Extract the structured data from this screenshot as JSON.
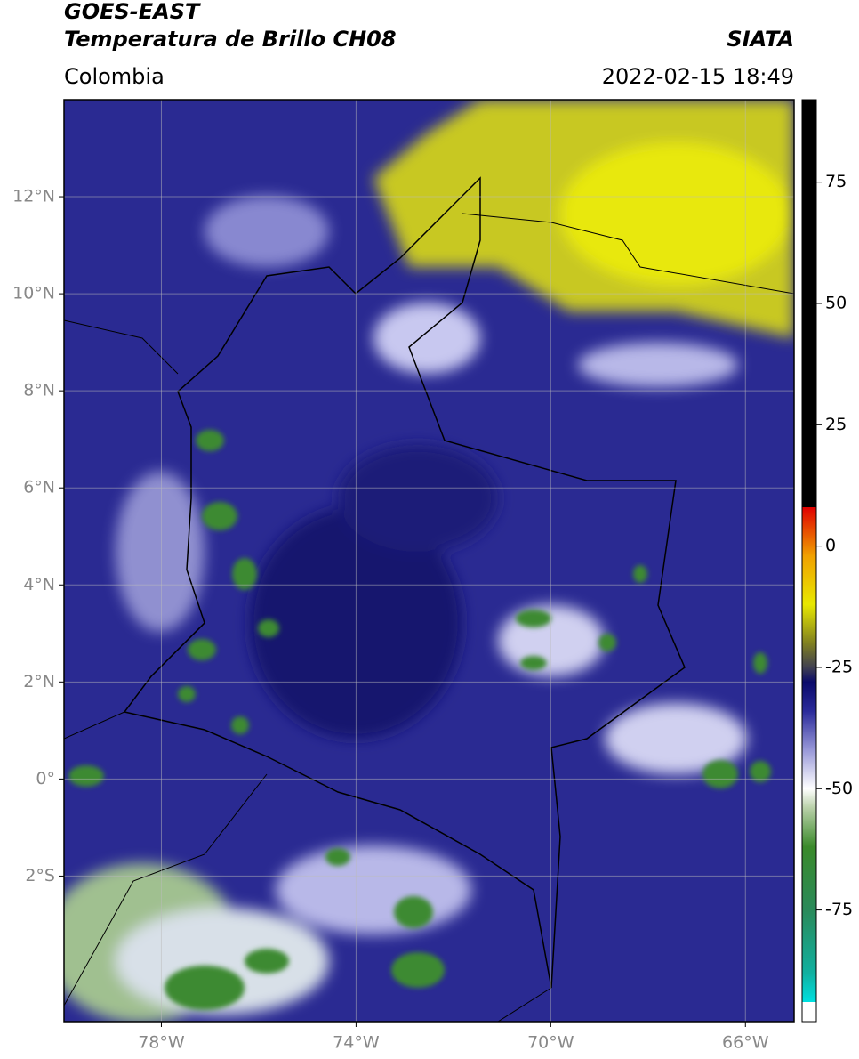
{
  "chart_data": {
    "type": "map",
    "title": "GOES-EAST",
    "subtitle": "Temperatura de Brillo CH08",
    "source": "SIATA",
    "region": "Colombia",
    "datetime": "2022-02-15 18:49",
    "xlim": [
      -80,
      -65
    ],
    "ylim": [
      -5,
      14
    ],
    "xticks": [
      {
        "value": -78,
        "label": "78°W"
      },
      {
        "value": -74,
        "label": "74°W"
      },
      {
        "value": -70,
        "label": "70°W"
      },
      {
        "value": -66,
        "label": "66°W"
      }
    ],
    "yticks": [
      {
        "value": 12,
        "label": "12°N"
      },
      {
        "value": 10,
        "label": "10°N"
      },
      {
        "value": 8,
        "label": "8°N"
      },
      {
        "value": 6,
        "label": "6°N"
      },
      {
        "value": 4,
        "label": "4°N"
      },
      {
        "value": 2,
        "label": "2°N"
      },
      {
        "value": 0,
        "label": "0°"
      },
      {
        "value": -2,
        "label": "2°S"
      }
    ],
    "grid": true,
    "colorbar": {
      "lim": [
        -98,
        92
      ],
      "ticks": [
        75,
        50,
        25,
        0,
        -25,
        -50,
        -75
      ],
      "stops": [
        {
          "value": -98,
          "color": "#ffffff"
        },
        {
          "value": -94,
          "color": "#ffffff"
        },
        {
          "value": -94,
          "color": "#00e0e0"
        },
        {
          "value": -88,
          "color": "#10b0a0"
        },
        {
          "value": -75,
          "color": "#2a8a5a"
        },
        {
          "value": -62,
          "color": "#3a8a2a"
        },
        {
          "value": -54,
          "color": "#b8d0a8"
        },
        {
          "value": -50,
          "color": "#ffffff"
        },
        {
          "value": -42,
          "color": "#9898d8"
        },
        {
          "value": -34,
          "color": "#2a2a9a"
        },
        {
          "value": -28,
          "color": "#0a0a6a"
        },
        {
          "value": -25,
          "color": "#404050"
        },
        {
          "value": -20,
          "color": "#808020"
        },
        {
          "value": -12,
          "color": "#e8e800"
        },
        {
          "value": -2,
          "color": "#f0a000"
        },
        {
          "value": 8,
          "color": "#e00000"
        },
        {
          "value": 8,
          "color": "#000000"
        },
        {
          "value": 92,
          "color": "#000000"
        }
      ]
    }
  }
}
